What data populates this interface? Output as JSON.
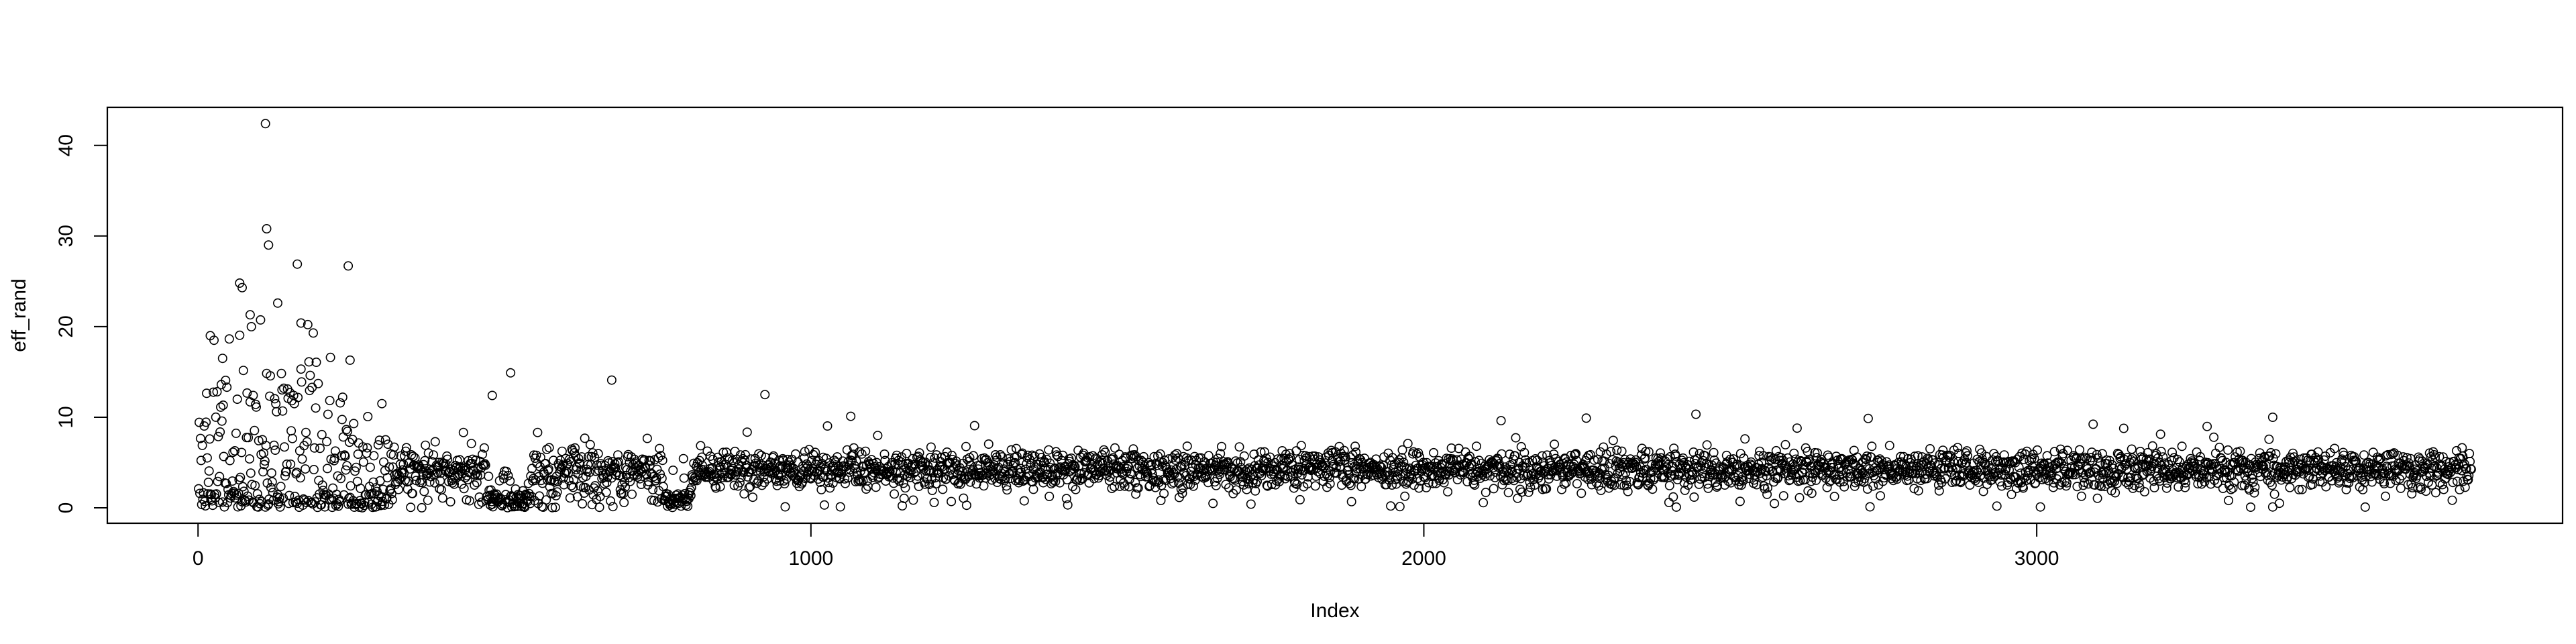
{
  "chart_data": {
    "type": "scatter",
    "title": "",
    "xlabel": "Index",
    "ylabel": "eff_rand",
    "xlim": [
      -148,
      3858
    ],
    "ylim": [
      -1.7,
      44.2
    ],
    "x_ticks": [
      0,
      1000,
      2000,
      3000
    ],
    "x_tick_labels": [
      "0",
      "1000",
      "2000",
      "3000"
    ],
    "y_ticks": [
      0,
      10,
      20,
      30,
      40
    ],
    "y_tick_labels": [
      "0",
      "10",
      "20",
      "30",
      "40"
    ],
    "n_points": 3710,
    "marker": "open-circle",
    "grid": false,
    "legend": "none",
    "point_color": "#000000",
    "notable_points": [
      {
        "x": 110,
        "y": 42.4
      },
      {
        "x": 112,
        "y": 30.8
      },
      {
        "x": 115,
        "y": 29.0
      },
      {
        "x": 68,
        "y": 24.8
      },
      {
        "x": 72,
        "y": 24.3
      },
      {
        "x": 130,
        "y": 22.6
      },
      {
        "x": 162,
        "y": 26.9
      },
      {
        "x": 245,
        "y": 26.7
      },
      {
        "x": 248,
        "y": 16.3
      },
      {
        "x": 168,
        "y": 20.4
      },
      {
        "x": 85,
        "y": 21.3
      },
      {
        "x": 20,
        "y": 19.0
      },
      {
        "x": 40,
        "y": 16.5
      },
      {
        "x": 510,
        "y": 14.9
      },
      {
        "x": 675,
        "y": 14.1
      },
      {
        "x": 925,
        "y": 12.5
      },
      {
        "x": 480,
        "y": 12.4
      },
      {
        "x": 300,
        "y": 11.5
      },
      {
        "x": 1065,
        "y": 10.1
      },
      {
        "x": 2265,
        "y": 9.9
      },
      {
        "x": 3385,
        "y": 10.0
      }
    ],
    "segments": [
      {
        "x_start": 1,
        "x_end": 240,
        "baseline": 7.0,
        "spread": 8.0,
        "low_bias": 0.25
      },
      {
        "x_start": 240,
        "x_end": 320,
        "baseline": 4.5,
        "spread": 4.0,
        "low_bias": 0.35
      },
      {
        "x_start": 320,
        "x_end": 470,
        "baseline": 4.2,
        "spread": 1.6,
        "low_bias": 0.05
      },
      {
        "x_start": 470,
        "x_end": 545,
        "baseline": 1.0,
        "spread": 2.5,
        "low_bias": 0.6
      },
      {
        "x_start": 545,
        "x_end": 760,
        "baseline": 4.0,
        "spread": 1.7,
        "low_bias": 0.08
      },
      {
        "x_start": 760,
        "x_end": 805,
        "baseline": 1.0,
        "spread": 2.5,
        "low_bias": 0.7
      },
      {
        "x_start": 805,
        "x_end": 3710,
        "baseline": 4.2,
        "spread": 1.5,
        "low_bias": 0.02
      }
    ]
  }
}
